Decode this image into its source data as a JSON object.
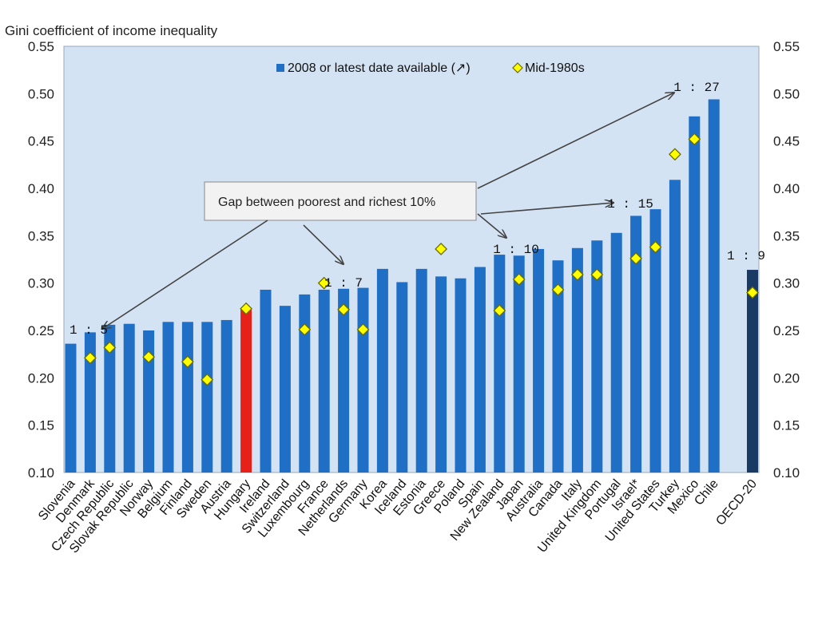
{
  "chart_data": {
    "type": "bar",
    "title": "Gini coefficient of income inequality",
    "ylim": [
      0.1,
      0.55
    ],
    "yticks": [
      "0.10",
      "0.15",
      "0.20",
      "0.25",
      "0.30",
      "0.35",
      "0.40",
      "0.45",
      "0.50",
      "0.55"
    ],
    "legend": {
      "bar_label": "2008 or latest date available (↗)",
      "marker_label": "Mid-1980s",
      "placement": "top-center"
    },
    "categories": [
      "Slovenia",
      "Denmark",
      "Czech Republic",
      "Slovak Republic",
      "Norway",
      "Belgium",
      "Finland",
      "Sweden",
      "Austria",
      "Hungary",
      "Ireland",
      "Switzerland",
      "Luxembourg",
      "France",
      "Netherlands",
      "Germany",
      "Korea",
      "Iceland",
      "Estonia",
      "Greece",
      "Poland",
      "Spain",
      "New Zealand",
      "Japan",
      "Australia",
      "Canada",
      "Italy",
      "United Kingdom",
      "Portugal",
      "Israel*",
      "United States",
      "Turkey",
      "Mexico",
      "Chile",
      "OECD-20"
    ],
    "series": [
      {
        "name": "2008 or latest date available (↗)",
        "values": [
          0.236,
          0.248,
          0.256,
          0.257,
          0.25,
          0.259,
          0.259,
          0.259,
          0.261,
          0.272,
          0.293,
          0.276,
          0.288,
          0.293,
          0.294,
          0.295,
          0.315,
          0.301,
          0.315,
          0.307,
          0.305,
          0.317,
          0.33,
          0.329,
          0.336,
          0.324,
          0.337,
          0.345,
          0.353,
          0.371,
          0.378,
          0.409,
          0.476,
          0.494,
          0.314
        ]
      },
      {
        "name": "Mid-1980s",
        "values": [
          null,
          0.221,
          0.232,
          null,
          0.222,
          null,
          0.217,
          0.198,
          null,
          0.273,
          null,
          null,
          0.251,
          0.3,
          0.272,
          0.251,
          null,
          null,
          null,
          0.336,
          null,
          null,
          0.271,
          0.304,
          null,
          0.293,
          0.309,
          0.309,
          null,
          0.326,
          0.338,
          0.436,
          0.452,
          null,
          0.29
        ]
      }
    ],
    "colors": {
      "bar": "#1f6fc6",
      "highlight_bar": "#e8201a",
      "oecd_bar": "#1a3a66",
      "marker_fill": "#ffff00",
      "marker_stroke": "#6b6b00",
      "plot_bg": "#d4e3f3"
    },
    "highlight_category": "Hungary",
    "oecd_category": "OECD-20",
    "annotation": {
      "text": "Gap between poorest and richest 10%",
      "ratios": [
        {
          "label": "1 : 5",
          "category": "Denmark"
        },
        {
          "label": "1 : 7",
          "category": "Netherlands"
        },
        {
          "label": "1 : 10",
          "category": "New Zealand"
        },
        {
          "label": "1 : 15",
          "category": "Portugal"
        },
        {
          "label": "1 : 27",
          "category": "Mexico"
        },
        {
          "label": "1 : 9",
          "category": "OECD-20"
        }
      ]
    }
  }
}
